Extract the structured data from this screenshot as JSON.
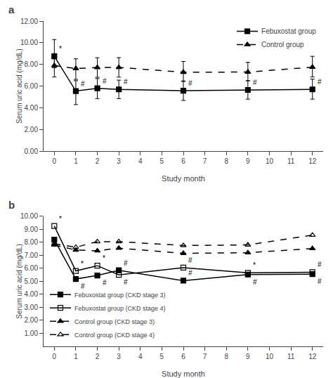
{
  "chart_data": [
    {
      "type": "line",
      "title": "a",
      "xlabel": "Study month",
      "ylabel": "Serum uric acid (mg/dL)",
      "x": [
        0,
        1,
        2,
        3,
        6,
        9,
        12
      ],
      "series": [
        {
          "name": "Febuxostat group",
          "values": [
            8.75,
            5.55,
            5.8,
            5.7,
            5.58,
            5.65,
            5.7
          ],
          "error_low": [
            1.05,
            1.25,
            0.95,
            0.85,
            0.9,
            0.85,
            0.9
          ],
          "error_high": [
            1.55,
            0.95,
            0.9,
            0.85,
            0.9,
            0.85,
            0.95
          ],
          "marker": "square",
          "line_style": "solid"
        },
        {
          "name": "Control group",
          "values": [
            7.9,
            7.62,
            7.72,
            7.73,
            7.28,
            7.3,
            7.75
          ],
          "error_low": [
            1.05,
            1.0,
            0.9,
            0.9,
            0.85,
            0.8,
            0.9
          ],
          "error_high": [
            1.1,
            0.9,
            0.9,
            0.9,
            1.0,
            0.9,
            1.0
          ],
          "marker": "triangle-up",
          "line_style": "dashed"
        }
      ],
      "color": "#000000",
      "xlim": [
        -0.5,
        12.5
      ],
      "xticks": [
        0,
        1,
        2,
        3,
        4,
        5,
        6,
        7,
        8,
        9,
        10,
        11,
        12
      ],
      "ylim": [
        0.0,
        12.0
      ],
      "yticks": [
        {
          "value": 0.0,
          "label": "0.00"
        },
        {
          "value": 2.0,
          "label": "2.00"
        },
        {
          "value": 4.0,
          "label": "4.00"
        },
        {
          "value": 6.0,
          "label": "6.00"
        },
        {
          "value": 8.0,
          "label": "8.00"
        },
        {
          "value": 10.0,
          "label": "10.00"
        },
        {
          "value": 12.0,
          "label": "12.00"
        }
      ],
      "grid": false,
      "legend": "upper right",
      "annotations": [
        {
          "text": "*",
          "x": 0,
          "y": 8.75
        },
        {
          "text": "#",
          "x": 1,
          "y": 5.55
        },
        {
          "text": "#",
          "x": 2,
          "y": 5.8
        },
        {
          "text": "#",
          "x": 3,
          "y": 5.7
        },
        {
          "text": "#",
          "x": 6,
          "y": 5.58
        },
        {
          "text": "#",
          "x": 9,
          "y": 5.65
        },
        {
          "text": "#",
          "x": 12,
          "y": 5.7
        }
      ]
    },
    {
      "type": "line",
      "title": "b",
      "xlabel": "Study month",
      "ylabel": "Serum uric acid (mg/dL)",
      "x": [
        0,
        1,
        2,
        3,
        6,
        9,
        12
      ],
      "series": [
        {
          "name": "Febuxostat group (CKD stage 3)",
          "values": [
            8.2,
            5.18,
            5.45,
            5.85,
            5.05,
            5.52,
            5.55
          ],
          "marker": "square",
          "line_style": "solid"
        },
        {
          "name": "Febuxostat group (CKD stage 4)",
          "values": [
            9.25,
            5.8,
            6.2,
            5.5,
            6.05,
            5.65,
            5.7
          ],
          "marker": "square-open",
          "line_style": "solid"
        },
        {
          "name": "Control group (CKD stage 3)",
          "values": [
            7.8,
            7.4,
            7.35,
            7.55,
            7.15,
            7.2,
            7.52
          ],
          "marker": "triangle-up",
          "line_style": "dashed"
        },
        {
          "name": "Control group (CKD stage 4)",
          "values": [
            7.9,
            7.62,
            8.05,
            8.05,
            7.75,
            7.8,
            8.55
          ],
          "marker": "triangle-up-open",
          "line_style": "dashed"
        }
      ],
      "color": "#000000",
      "xlim": [
        -0.5,
        12.5
      ],
      "xticks": [
        0,
        1,
        2,
        3,
        4,
        5,
        6,
        7,
        8,
        9,
        10,
        11,
        12
      ],
      "ylim": [
        0.0,
        10.0
      ],
      "yticks": [
        {
          "value": 1.0,
          "label": "1.00"
        },
        {
          "value": 2.0,
          "label": "2.00"
        },
        {
          "value": 3.0,
          "label": "3.00"
        },
        {
          "value": 4.0,
          "label": "4.00"
        },
        {
          "value": 5.0,
          "label": "5.00"
        },
        {
          "value": 6.0,
          "label": "6.00"
        },
        {
          "value": 7.0,
          "label": "7.00"
        },
        {
          "value": 8.0,
          "label": "8.00"
        },
        {
          "value": 9.0,
          "label": "9.00"
        },
        {
          "value": 10.0,
          "label": "10.00"
        }
      ],
      "grid": false,
      "legend": "lower left",
      "annotations": [
        {
          "text": "*",
          "x": 0,
          "y": 9.25
        },
        {
          "text": "#",
          "x": 1,
          "y": 5.18
        },
        {
          "text": "#",
          "x": 2,
          "y": 5.45
        },
        {
          "text": "#",
          "x": 3,
          "y": 5.85
        },
        {
          "text": "#",
          "x": 6,
          "y": 5.05
        },
        {
          "text": "#",
          "x": 9,
          "y": 5.52
        },
        {
          "text": "#",
          "x": 12,
          "y": 5.55
        },
        {
          "text": "*",
          "x": 1,
          "y": 5.8
        },
        {
          "text": "*",
          "x": 2,
          "y": 6.2
        },
        {
          "text": "*",
          "x": 9,
          "y": 5.65
        },
        {
          "text": "#",
          "x": 3,
          "y": 5.5
        },
        {
          "text": "#",
          "x": 6,
          "y": 6.05
        },
        {
          "text": "#",
          "x": 12,
          "y": 5.7
        }
      ]
    }
  ]
}
